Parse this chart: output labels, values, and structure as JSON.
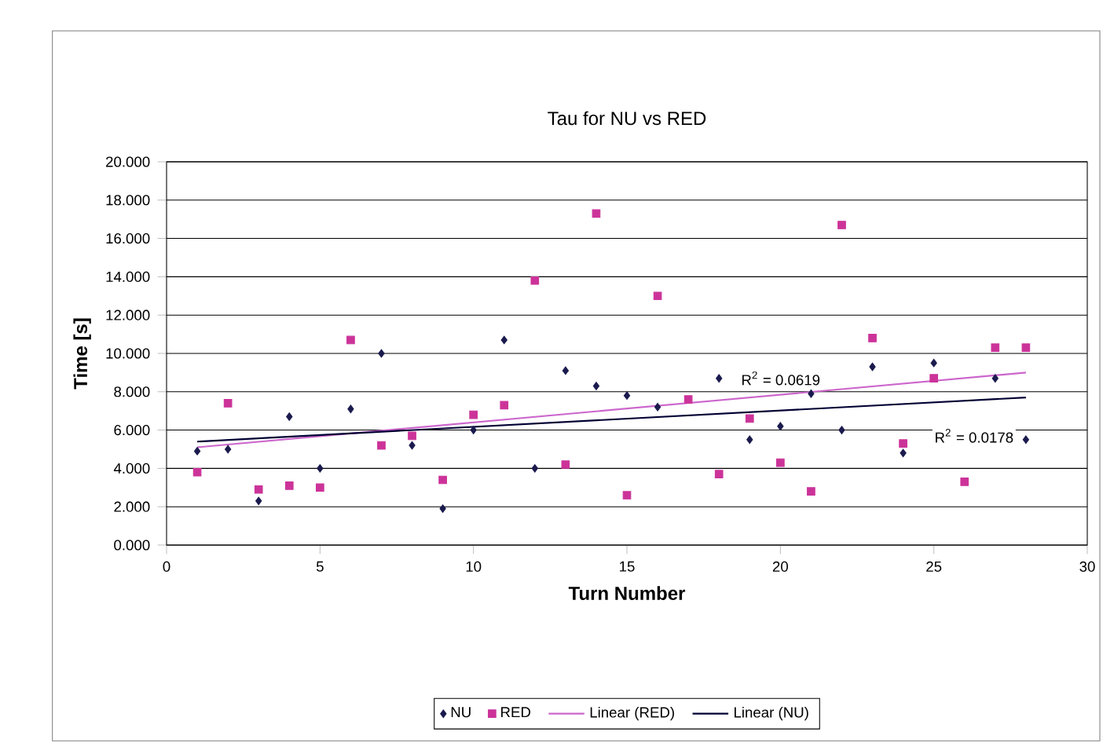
{
  "chart_data": {
    "type": "scatter",
    "title": "Tau for NU vs RED",
    "xlabel": "Turn Number",
    "ylabel": "Time [s]",
    "series": [
      {
        "name": "NU",
        "color": "#1a1a4d",
        "marker": "diamond",
        "x": [
          1,
          2,
          3,
          4,
          5,
          6,
          7,
          8,
          9,
          10,
          11,
          12,
          13,
          14,
          15,
          16,
          18,
          19,
          20,
          21,
          22,
          23,
          24,
          25,
          27,
          28
        ],
        "values": [
          4.9,
          5.0,
          2.3,
          6.7,
          4.0,
          7.1,
          10.0,
          5.2,
          1.9,
          6.0,
          10.7,
          4.0,
          9.1,
          8.3,
          7.8,
          7.2,
          8.7,
          5.5,
          6.2,
          7.9,
          6.0,
          9.3,
          4.8,
          9.5,
          8.7,
          5.5
        ]
      },
      {
        "name": "RED",
        "color": "#cc3399",
        "marker": "square",
        "x": [
          1,
          2,
          3,
          4,
          5,
          6,
          7,
          8,
          9,
          10,
          11,
          12,
          13,
          14,
          15,
          16,
          17,
          18,
          19,
          20,
          21,
          22,
          23,
          24,
          25,
          26,
          27,
          28
        ],
        "values": [
          3.8,
          7.4,
          2.9,
          3.1,
          3.0,
          10.7,
          5.2,
          5.7,
          3.4,
          6.8,
          7.3,
          13.8,
          4.2,
          17.3,
          2.6,
          13.0,
          7.6,
          3.7,
          6.6,
          4.3,
          2.8,
          16.7,
          10.8,
          5.3,
          8.7,
          3.3,
          10.3,
          10.3
        ]
      },
      {
        "name": "Linear (RED)",
        "type": "line",
        "color": "#cc66cc",
        "marker": "none",
        "x": [
          1,
          28
        ],
        "values": [
          5.1,
          9.0
        ]
      },
      {
        "name": "Linear (NU)",
        "type": "line",
        "color": "#000033",
        "marker": "none",
        "x": [
          1,
          28
        ],
        "values": [
          5.4,
          7.7
        ]
      }
    ],
    "annotations": [
      "R$^{2}$ = 0.0619",
      "R$^{2}$ = 0.0178"
    ],
    "xlim": [
      0,
      30
    ],
    "ylim": [
      0,
      20
    ],
    "xticks": [
      0,
      5,
      10,
      15,
      20,
      25,
      30
    ],
    "yticks": [
      {
        "value": 0,
        "label": "0.000"
      },
      {
        "value": 2,
        "label": "2.000"
      },
      {
        "value": 4,
        "label": "4.000"
      },
      {
        "value": 6,
        "label": "6.000"
      },
      {
        "value": 8,
        "label": "8.000"
      },
      {
        "value": 10,
        "label": "10.000"
      },
      {
        "value": 12,
        "label": "12.000"
      },
      {
        "value": 14,
        "label": "14.000"
      },
      {
        "value": 16,
        "label": "16.000"
      },
      {
        "value": 18,
        "label": "18.000"
      },
      {
        "value": 20,
        "label": "20.000"
      }
    ],
    "grid": "y",
    "legend": "bottom"
  }
}
